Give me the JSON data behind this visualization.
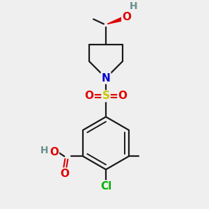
{
  "background_color": "#efefef",
  "bond_color": "#1a1a1a",
  "atom_colors": {
    "O": "#e00000",
    "N": "#0000cc",
    "S": "#c8c800",
    "Cl": "#00b400",
    "H": "#6b9090",
    "C": "#1a1a1a"
  },
  "figsize": [
    3.0,
    3.0
  ],
  "dpi": 100
}
